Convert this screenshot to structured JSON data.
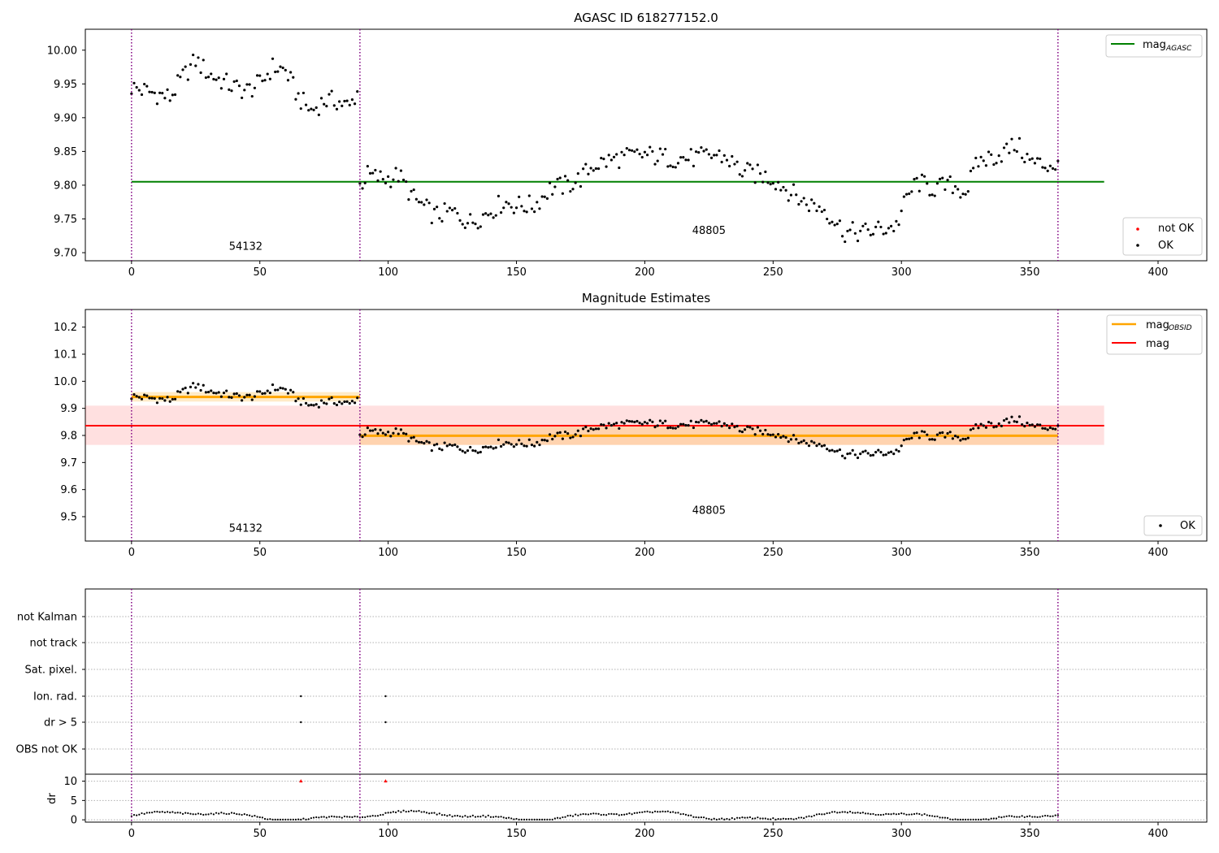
{
  "chart_data": [
    {
      "type": "scatter",
      "title": "AGASC ID 618277152.0",
      "xlim": [
        -18,
        419
      ],
      "ylim": [
        9.688,
        10.031
      ],
      "xticks": [
        0,
        50,
        100,
        150,
        200,
        250,
        300,
        350,
        400
      ],
      "yticks": [
        9.7,
        9.75,
        9.8,
        9.85,
        9.9,
        9.95,
        10.0
      ],
      "ytick_labels": [
        "9.70",
        "9.75",
        "9.80",
        "9.85",
        "9.90",
        "9.95",
        "10.00"
      ],
      "obsid_boundaries": [
        0,
        89,
        361
      ],
      "obsid_labels": [
        {
          "text": "54132",
          "x": 44.5,
          "y": 9.704
        },
        {
          "text": "48805",
          "x": 225,
          "y": 9.728
        }
      ],
      "hlines": [
        {
          "name": "mag_AGASC",
          "value": 9.805,
          "x0": 0,
          "x1": 379,
          "color": "#008000"
        }
      ],
      "series": [
        {
          "name": "not OK",
          "color": "#ff0000",
          "points": []
        },
        {
          "name": "OK",
          "color": "#000000",
          "points": "mag_samples"
        }
      ],
      "legend_upper": [
        {
          "label": "mag",
          "sub": "AGASC",
          "kind": "line",
          "color": "#008000"
        }
      ],
      "legend_lower": [
        {
          "label": "not OK",
          "kind": "dot",
          "color": "#ff0000"
        },
        {
          "label": "OK",
          "kind": "dot",
          "color": "#000000"
        }
      ]
    },
    {
      "type": "scatter",
      "title": "Magnitude Estimates",
      "xlim": [
        -18,
        419
      ],
      "ylim": [
        9.41,
        10.265
      ],
      "xticks": [
        0,
        50,
        100,
        150,
        200,
        250,
        300,
        350,
        400
      ],
      "yticks": [
        9.5,
        9.6,
        9.7,
        9.8,
        9.9,
        10.0,
        10.1,
        10.2
      ],
      "ytick_labels": [
        "9.5",
        "9.6",
        "9.7",
        "9.8",
        "9.9",
        "10.0",
        "10.1",
        "10.2"
      ],
      "obsid_boundaries": [
        0,
        89,
        361
      ],
      "obsid_labels": [
        {
          "text": "54132",
          "x": 44.5,
          "y": 9.445
        },
        {
          "text": "48805",
          "x": 225,
          "y": 9.51
        }
      ],
      "mag": {
        "value": 9.836,
        "low": 9.765,
        "high": 9.91,
        "x0": -18,
        "x1": 379,
        "color": "#ff0000"
      },
      "mag_obsid": [
        {
          "x0": 0,
          "x1": 89,
          "value": 9.942,
          "low": 9.925,
          "high": 9.96
        },
        {
          "x0": 89,
          "x1": 361,
          "value": 9.799,
          "low": 9.765,
          "high": 9.835
        }
      ],
      "series": [
        {
          "name": "OK",
          "color": "#000000",
          "points": "mag_samples"
        }
      ],
      "legend_upper": [
        {
          "label": "mag",
          "sub": "OBSID",
          "kind": "line",
          "color": "#ffa500"
        },
        {
          "label": "mag",
          "sub": "",
          "kind": "line",
          "color": "#ff0000"
        }
      ],
      "legend_lower": [
        {
          "label": "OK",
          "kind": "dot",
          "color": "#000000"
        }
      ]
    },
    {
      "type": "scatter",
      "xlim": [
        -18,
        419
      ],
      "flag_rows": [
        "not Kalman",
        "not track",
        "Sat. pixel.",
        "Ion. rad.",
        "dr > 5",
        "OBS not OK"
      ],
      "flag_points": [
        {
          "row": "Ion. rad.",
          "x": 66
        },
        {
          "row": "Ion. rad.",
          "x": 99
        },
        {
          "row": "dr > 5",
          "x": 66
        },
        {
          "row": "dr > 5",
          "x": 99
        }
      ],
      "obsid_boundaries": [
        0,
        89,
        361
      ],
      "dr": {
        "ylabel": "dr",
        "ylim": [
          -0.6,
          11.8
        ],
        "yticks": [
          0,
          5,
          10
        ],
        "ytick_labels": [
          "0",
          "5",
          "10"
        ],
        "outliers": [
          {
            "x": 66,
            "y": 10
          },
          {
            "x": 99,
            "y": 10
          }
        ]
      },
      "xticks": [
        0,
        50,
        100,
        150,
        200,
        250,
        300,
        350,
        400
      ]
    }
  ],
  "mag_samples": {
    "x_start": 0,
    "x_end": 361,
    "anchors": [
      [
        0,
        9.945
      ],
      [
        5,
        9.94
      ],
      [
        10,
        9.935
      ],
      [
        15,
        9.93
      ],
      [
        20,
        9.96
      ],
      [
        25,
        9.985
      ],
      [
        30,
        9.965
      ],
      [
        35,
        9.955
      ],
      [
        40,
        9.945
      ],
      [
        45,
        9.94
      ],
      [
        50,
        9.95
      ],
      [
        55,
        9.975
      ],
      [
        60,
        9.97
      ],
      [
        65,
        9.93
      ],
      [
        70,
        9.91
      ],
      [
        75,
        9.925
      ],
      [
        80,
        9.925
      ],
      [
        85,
        9.915
      ],
      [
        88,
        9.94
      ],
      [
        89,
        9.8
      ],
      [
        92,
        9.815
      ],
      [
        97,
        9.81
      ],
      [
        100,
        9.81
      ],
      [
        104,
        9.815
      ],
      [
        110,
        9.78
      ],
      [
        118,
        9.755
      ],
      [
        125,
        9.76
      ],
      [
        132,
        9.745
      ],
      [
        137,
        9.755
      ],
      [
        145,
        9.775
      ],
      [
        150,
        9.77
      ],
      [
        157,
        9.77
      ],
      [
        163,
        9.795
      ],
      [
        170,
        9.8
      ],
      [
        175,
        9.81
      ],
      [
        180,
        9.83
      ],
      [
        190,
        9.84
      ],
      [
        200,
        9.845
      ],
      [
        210,
        9.84
      ],
      [
        220,
        9.84
      ],
      [
        228,
        9.845
      ],
      [
        232,
        9.84
      ],
      [
        238,
        9.82
      ],
      [
        245,
        9.815
      ],
      [
        250,
        9.81
      ],
      [
        255,
        9.795
      ],
      [
        262,
        9.775
      ],
      [
        270,
        9.765
      ],
      [
        278,
        9.73
      ],
      [
        285,
        9.73
      ],
      [
        292,
        9.735
      ],
      [
        298,
        9.74
      ],
      [
        302,
        9.78
      ],
      [
        306,
        9.805
      ],
      [
        312,
        9.795
      ],
      [
        320,
        9.8
      ],
      [
        325,
        9.79
      ],
      [
        330,
        9.835
      ],
      [
        338,
        9.845
      ],
      [
        345,
        9.86
      ],
      [
        350,
        9.835
      ],
      [
        355,
        9.83
      ],
      [
        361,
        9.83
      ]
    ]
  }
}
